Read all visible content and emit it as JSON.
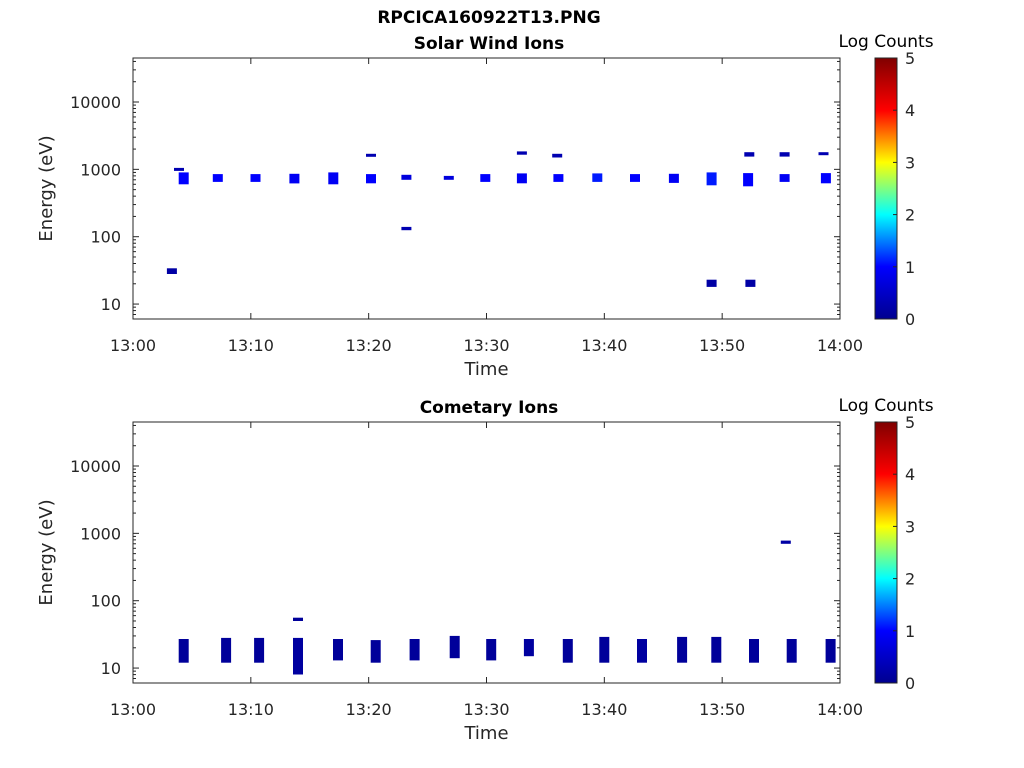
{
  "figure": {
    "title": "RPCICA160922T13.PNG"
  },
  "colormap": [
    "#00008f",
    "#0000ff",
    "#00ffff",
    "#ffff00",
    "#ff0000",
    "#800000"
  ],
  "chart_data": [
    {
      "type": "heatmap",
      "title": "Solar Wind Ions",
      "xlabel": "Time",
      "ylabel": "Energy (eV)",
      "xlim": [
        "13:00",
        "14:00"
      ],
      "ylim": [
        6,
        45000
      ],
      "yscale": "log",
      "xticks": [
        "13:00",
        "13:10",
        "13:20",
        "13:30",
        "13:40",
        "13:50",
        "14:00"
      ],
      "yticks": [
        10,
        100,
        1000,
        10000
      ],
      "ytick_labels": [
        "10",
        "100",
        "1000",
        "10000"
      ],
      "colorbar": {
        "label": "Log Counts",
        "range": [
          0,
          5
        ],
        "ticks": [
          "0",
          "1",
          "2",
          "3",
          "4",
          "5"
        ]
      },
      "grid": false,
      "blobs": [
        {
          "t": "13:04.3",
          "e_lo": 600,
          "e_hi": 900,
          "log_counts": 1.0
        },
        {
          "t": "13:03.9",
          "e_lo": 950,
          "e_hi": 1050,
          "log_counts": 0.3
        },
        {
          "t": "13:07.2",
          "e_lo": 650,
          "e_hi": 850,
          "log_counts": 1.0
        },
        {
          "t": "13:10.4",
          "e_lo": 650,
          "e_hi": 850,
          "log_counts": 1.0
        },
        {
          "t": "13:13.7",
          "e_lo": 620,
          "e_hi": 860,
          "log_counts": 0.9
        },
        {
          "t": "13:17.0",
          "e_lo": 600,
          "e_hi": 900,
          "log_counts": 0.9
        },
        {
          "t": "13:20.2",
          "e_lo": 620,
          "e_hi": 850,
          "log_counts": 1.0
        },
        {
          "t": "13:20.2",
          "e_lo": 1550,
          "e_hi": 1700,
          "log_counts": 0.3
        },
        {
          "t": "13:23.2",
          "e_lo": 700,
          "e_hi": 830,
          "log_counts": 0.7
        },
        {
          "t": "13:23.2",
          "e_lo": 125,
          "e_hi": 140,
          "log_counts": 0.3
        },
        {
          "t": "13:26.8",
          "e_lo": 700,
          "e_hi": 800,
          "log_counts": 0.7
        },
        {
          "t": "13:29.9",
          "e_lo": 650,
          "e_hi": 850,
          "log_counts": 1.0
        },
        {
          "t": "13:33.0",
          "e_lo": 620,
          "e_hi": 870,
          "log_counts": 0.9
        },
        {
          "t": "13:33.0",
          "e_lo": 1650,
          "e_hi": 1850,
          "log_counts": 0.3
        },
        {
          "t": "13:36.1",
          "e_lo": 650,
          "e_hi": 850,
          "log_counts": 1.0
        },
        {
          "t": "13:36.0",
          "e_lo": 1500,
          "e_hi": 1700,
          "log_counts": 0.3
        },
        {
          "t": "13:39.4",
          "e_lo": 650,
          "e_hi": 870,
          "log_counts": 1.1
        },
        {
          "t": "13:42.6",
          "e_lo": 650,
          "e_hi": 850,
          "log_counts": 1.0
        },
        {
          "t": "13:45.9",
          "e_lo": 630,
          "e_hi": 860,
          "log_counts": 0.9
        },
        {
          "t": "13:49.1",
          "e_lo": 580,
          "e_hi": 900,
          "log_counts": 1.1
        },
        {
          "t": "13:52.2",
          "e_lo": 560,
          "e_hi": 880,
          "log_counts": 1.0
        },
        {
          "t": "13:52.3",
          "e_lo": 1550,
          "e_hi": 1800,
          "log_counts": 0.3
        },
        {
          "t": "13:55.3",
          "e_lo": 650,
          "e_hi": 850,
          "log_counts": 0.9
        },
        {
          "t": "13:55.3",
          "e_lo": 1550,
          "e_hi": 1800,
          "log_counts": 0.3
        },
        {
          "t": "13:58.8",
          "e_lo": 620,
          "e_hi": 880,
          "log_counts": 1.0
        },
        {
          "t": "13:58.6",
          "e_lo": 1650,
          "e_hi": 1800,
          "log_counts": 0.3
        },
        {
          "t": "13:03.3",
          "e_lo": 28,
          "e_hi": 34,
          "log_counts": 0.2
        },
        {
          "t": "13:49.1",
          "e_lo": 18,
          "e_hi": 23,
          "log_counts": 0.2
        },
        {
          "t": "13:52.4",
          "e_lo": 18,
          "e_hi": 23,
          "log_counts": 0.2
        }
      ]
    },
    {
      "type": "heatmap",
      "title": "Cometary Ions",
      "xlabel": "Time",
      "ylabel": "Energy (eV)",
      "xlim": [
        "13:00",
        "14:00"
      ],
      "ylim": [
        6,
        45000
      ],
      "yscale": "log",
      "xticks": [
        "13:00",
        "13:10",
        "13:20",
        "13:30",
        "13:40",
        "13:50",
        "14:00"
      ],
      "yticks": [
        10,
        100,
        1000,
        10000
      ],
      "ytick_labels": [
        "10",
        "100",
        "1000",
        "10000"
      ],
      "colorbar": {
        "label": "Log Counts",
        "range": [
          0,
          5
        ],
        "ticks": [
          "0",
          "1",
          "2",
          "3",
          "4",
          "5"
        ]
      },
      "grid": false,
      "blobs": [
        {
          "t": "13:04.3",
          "e_lo": 12,
          "e_hi": 27,
          "log_counts": 0.1
        },
        {
          "t": "13:07.9",
          "e_lo": 12,
          "e_hi": 28,
          "log_counts": 0.1
        },
        {
          "t": "13:10.7",
          "e_lo": 12,
          "e_hi": 28,
          "log_counts": 0.1
        },
        {
          "t": "13:14.0",
          "e_lo": 8,
          "e_hi": 28,
          "log_counts": 0.15
        },
        {
          "t": "13:14.0",
          "e_lo": 50,
          "e_hi": 56,
          "log_counts": 0.1
        },
        {
          "t": "13:17.4",
          "e_lo": 13,
          "e_hi": 27,
          "log_counts": 0.1
        },
        {
          "t": "13:20.6",
          "e_lo": 12,
          "e_hi": 26,
          "log_counts": 0.1
        },
        {
          "t": "13:23.9",
          "e_lo": 13,
          "e_hi": 27,
          "log_counts": 0.1
        },
        {
          "t": "13:27.3",
          "e_lo": 14,
          "e_hi": 30,
          "log_counts": 0.1
        },
        {
          "t": "13:30.4",
          "e_lo": 13,
          "e_hi": 27,
          "log_counts": 0.1
        },
        {
          "t": "13:33.6",
          "e_lo": 15,
          "e_hi": 27,
          "log_counts": 0.15
        },
        {
          "t": "13:36.9",
          "e_lo": 12,
          "e_hi": 27,
          "log_counts": 0.1
        },
        {
          "t": "13:40.0",
          "e_lo": 12,
          "e_hi": 29,
          "log_counts": 0.1
        },
        {
          "t": "13:43.2",
          "e_lo": 12,
          "e_hi": 27,
          "log_counts": 0.15
        },
        {
          "t": "13:46.6",
          "e_lo": 12,
          "e_hi": 29,
          "log_counts": 0.1
        },
        {
          "t": "13:49.5",
          "e_lo": 12,
          "e_hi": 29,
          "log_counts": 0.1
        },
        {
          "t": "13:52.7",
          "e_lo": 12,
          "e_hi": 27,
          "log_counts": 0.1
        },
        {
          "t": "13:55.9",
          "e_lo": 12,
          "e_hi": 27,
          "log_counts": 0.1
        },
        {
          "t": "13:59.2",
          "e_lo": 12,
          "e_hi": 27,
          "log_counts": 0.1
        },
        {
          "t": "13:55.4",
          "e_lo": 700,
          "e_hi": 780,
          "log_counts": 0.2
        }
      ]
    }
  ]
}
